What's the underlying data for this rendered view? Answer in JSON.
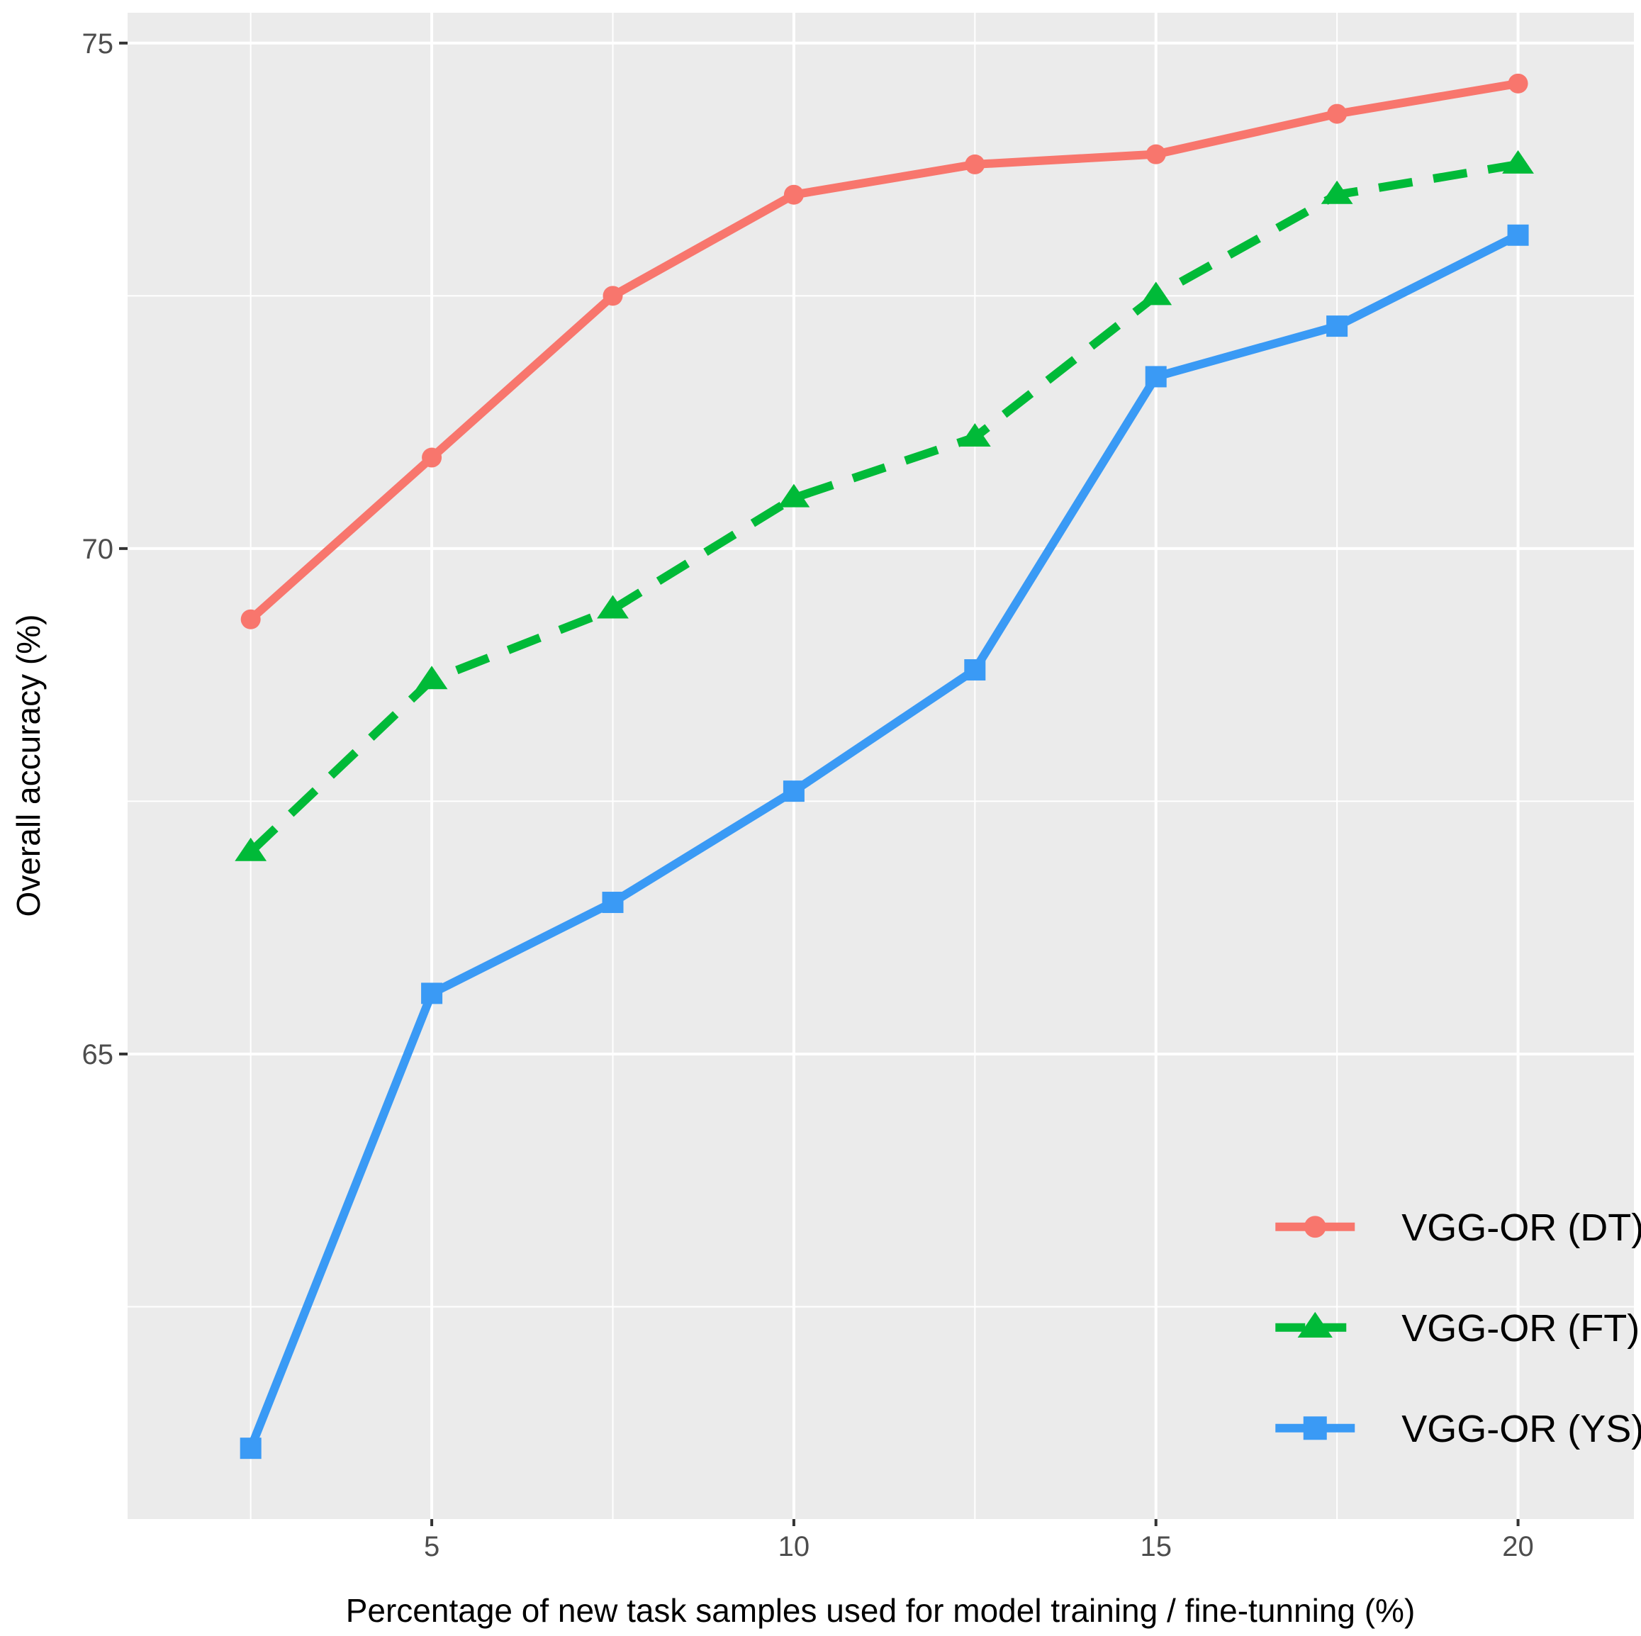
{
  "chart_data": {
    "type": "line",
    "xlabel": "Percentage of new task samples used for model training / fine-tunning (%)",
    "ylabel": "Overall accuracy (%)",
    "xlim": [
      0.8,
      21.6
    ],
    "ylim": [
      60.4,
      75.3
    ],
    "x_ticks": [
      5,
      10,
      15,
      20
    ],
    "y_ticks": [
      65,
      70,
      75
    ],
    "x_tick_labels": [
      "5",
      "10",
      "15",
      "20"
    ],
    "y_tick_labels": [
      "65",
      "70",
      "75"
    ],
    "grid": true,
    "legend_position": "bottom-right",
    "x": [
      2.5,
      5,
      7.5,
      10,
      12.5,
      15,
      17.5,
      20
    ],
    "series": [
      {
        "name": "VGG-OR (DT)",
        "color": "#F8766D",
        "marker": "circle",
        "line_style": "solid",
        "values": [
          69.3,
          70.9,
          72.5,
          73.5,
          73.8,
          73.9,
          74.3,
          74.6
        ]
      },
      {
        "name": "VGG-OR (FT)",
        "color": "#00BA38",
        "marker": "triangle",
        "line_style": "dashed",
        "values": [
          67.0,
          68.7,
          69.4,
          70.5,
          71.1,
          72.5,
          73.5,
          73.8
        ]
      },
      {
        "name": "VGG-OR (YS)",
        "color": "#3A9AF5",
        "marker": "square",
        "line_style": "solid",
        "values": [
          61.1,
          65.6,
          66.5,
          67.6,
          68.8,
          71.7,
          72.2,
          73.1
        ]
      }
    ]
  }
}
